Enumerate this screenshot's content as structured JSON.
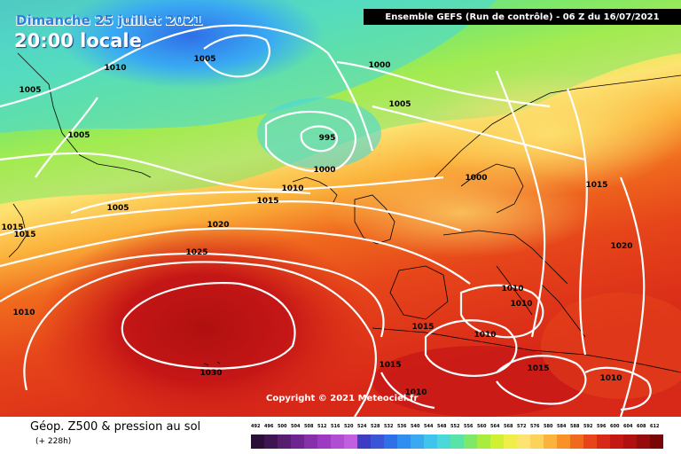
{
  "header": {
    "date_line": "Dimanche 25 juillet 2021",
    "time_line": "20:00 locale",
    "run_line": "Ensemble GEFS  (Run de contrôle)  -  06 Z du 16/07/2021"
  },
  "copyright": "Copyright © 2021 Meteociel.fr",
  "footer": {
    "field": "Géop. Z500 & pression au sol",
    "lead": "(+ 228h)"
  },
  "scale": {
    "values": [
      "492",
      "496",
      "500",
      "504",
      "508",
      "512",
      "516",
      "520",
      "524",
      "528",
      "532",
      "536",
      "540",
      "544",
      "548",
      "552",
      "556",
      "560",
      "564",
      "568",
      "572",
      "576",
      "580",
      "584",
      "588",
      "592",
      "596",
      "600",
      "604",
      "608",
      "612"
    ],
    "colors": [
      "#2a0e35",
      "#3e1550",
      "#571d6f",
      "#6e2590",
      "#8630aa",
      "#9c3bc2",
      "#b04dd3",
      "#c060e0",
      "#3d3dc4",
      "#3a55d6",
      "#2f6fe8",
      "#2f8ff0",
      "#39aaf2",
      "#3fc4ee",
      "#4ad8d8",
      "#58e3a8",
      "#7ee86a",
      "#a8ec3e",
      "#d0f032",
      "#f0ef4a",
      "#fde372",
      "#fdd25a",
      "#fbb33c",
      "#f89228",
      "#f06a1e",
      "#e6451a",
      "#d82818",
      "#c51616",
      "#b01010",
      "#960b0b",
      "#780606"
    ]
  },
  "isobar_labels": [
    "1010",
    "1005",
    "1005",
    "1000",
    "1005",
    "1005",
    "995",
    "1000",
    "1005",
    "1010",
    "1015",
    "1015",
    "1020",
    "1025",
    "1030",
    "1010",
    "1000",
    "1015",
    "1020",
    "1010",
    "1010",
    "1015",
    "1010",
    "1015",
    "1015",
    "1010",
    "1010",
    "1015",
    "1010"
  ],
  "colors": {
    "header_date": "#2f7fd8",
    "header_time": "#ffffff",
    "run_box_bg": "#000000",
    "isobar": "#ffffff",
    "coastline": "#000000"
  }
}
